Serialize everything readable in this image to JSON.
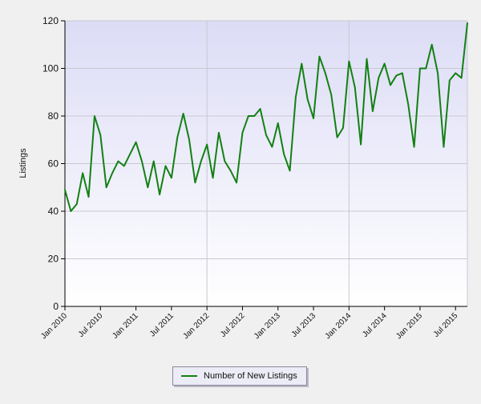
{
  "chart_data": {
    "type": "line",
    "title": "",
    "xlabel": "",
    "ylabel": "Listings",
    "ylim": [
      0,
      120
    ],
    "yticks": [
      0,
      20,
      40,
      60,
      80,
      100,
      120
    ],
    "xticks": [
      {
        "label": "Jan 2010",
        "index": 0
      },
      {
        "label": "Jul 2010",
        "index": 6
      },
      {
        "label": "Jan 2011",
        "index": 12
      },
      {
        "label": "Jul 2011",
        "index": 18
      },
      {
        "label": "Jan 2012",
        "index": 24
      },
      {
        "label": "Jul 2012",
        "index": 30
      },
      {
        "label": "Jan 2013",
        "index": 36
      },
      {
        "label": "Jul 2013",
        "index": 42
      },
      {
        "label": "Jan 2014",
        "index": 48
      },
      {
        "label": "Jul 2014",
        "index": 54
      },
      {
        "label": "Jan 2015",
        "index": 60
      },
      {
        "label": "Jul 2015",
        "index": 66
      }
    ],
    "grid": true,
    "legend_position": "bottom-center",
    "colors": {
      "line": "#138013",
      "plot_bg_top": "#dcdcf6",
      "plot_bg_bottom": "#ffffff",
      "grid": "#c8c8d2",
      "axis": "#000000"
    },
    "series": [
      {
        "name": "Number of New Listings",
        "values": [
          49,
          40,
          43,
          56,
          46,
          80,
          72,
          50,
          56,
          61,
          59,
          64,
          69,
          61,
          50,
          61,
          47,
          59,
          54,
          71,
          81,
          70,
          52,
          61,
          68,
          54,
          73,
          61,
          57,
          52,
          73,
          80,
          80,
          83,
          72,
          67,
          77,
          64,
          57,
          88,
          102,
          87,
          79,
          105,
          98,
          89,
          71,
          75,
          103,
          92,
          68,
          104,
          82,
          96,
          102,
          93,
          97,
          98,
          85,
          67,
          100,
          100,
          110,
          98,
          67,
          95,
          98,
          96,
          119
        ]
      }
    ]
  }
}
